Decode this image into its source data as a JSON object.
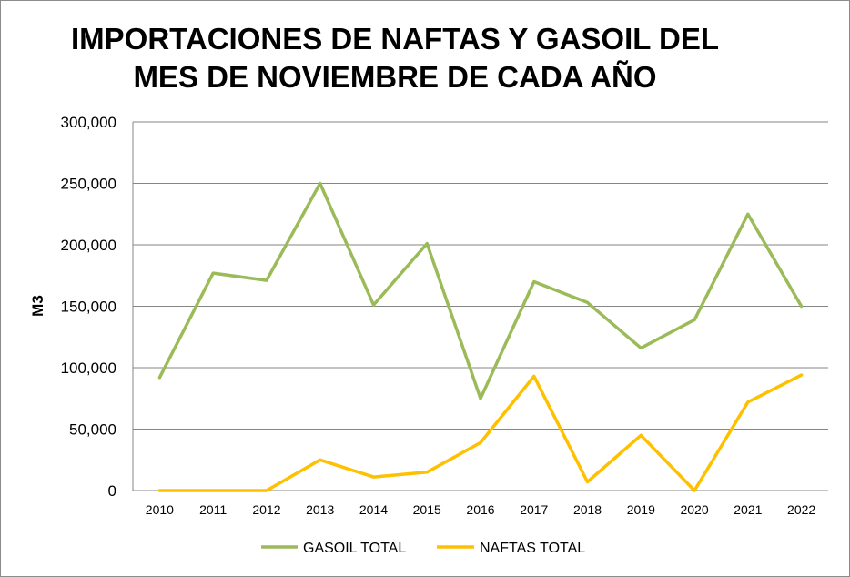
{
  "chart_data": {
    "type": "line",
    "title": [
      "IMPORTACIONES DE NAFTAS Y GASOIL DEL",
      "MES DE NOVIEMBRE DE CADA AÑO"
    ],
    "xlabel": "",
    "ylabel": "M3",
    "ylim": [
      0,
      300000
    ],
    "yticks": [
      0,
      50000,
      100000,
      150000,
      200000,
      250000,
      300000
    ],
    "ytick_labels": [
      "0",
      "50,000",
      "100,000",
      "150,000",
      "200,000",
      "250,000",
      "300,000"
    ],
    "categories": [
      "2010",
      "2011",
      "2012",
      "2013",
      "2014",
      "2015",
      "2016",
      "2017",
      "2018",
      "2019",
      "2020",
      "2021",
      "2022"
    ],
    "grid": true,
    "legend_position": "bottom",
    "series": [
      {
        "name": "GASOIL TOTAL",
        "color": "#9bbb59",
        "values": [
          92000,
          177000,
          171000,
          250000,
          151000,
          201000,
          75000,
          170000,
          153000,
          116000,
          139000,
          225000,
          150000
        ]
      },
      {
        "name": "NAFTAS TOTAL",
        "color": "#ffc000",
        "values": [
          0,
          0,
          0,
          25000,
          11000,
          15000,
          39000,
          93000,
          7000,
          45000,
          0,
          72000,
          94000
        ]
      }
    ]
  }
}
